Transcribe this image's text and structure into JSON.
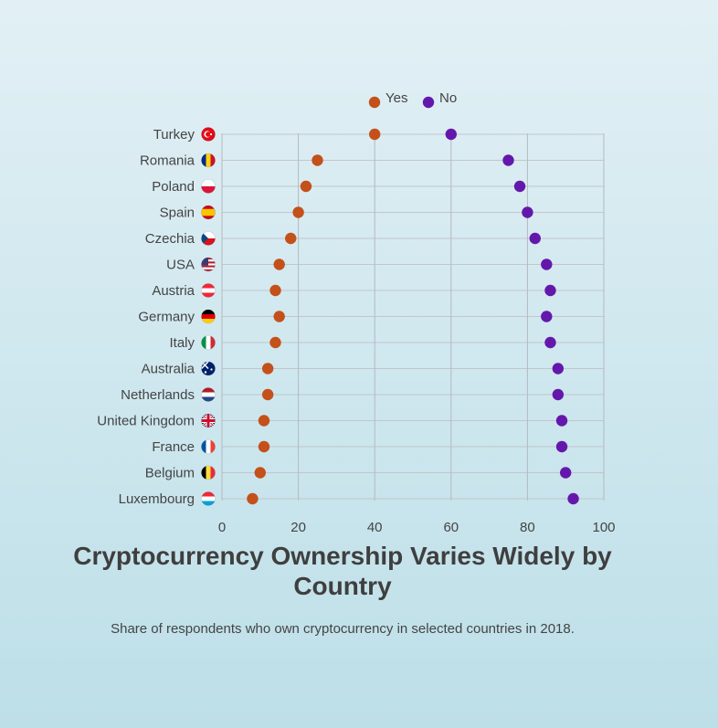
{
  "chart_data": {
    "type": "dot",
    "title": "Cryptocurrency Ownership Varies Widely by Country",
    "subtitle": "Share of respondents who own cryptocurrency in selected countries in 2018.",
    "xlim": [
      0,
      100
    ],
    "xticks": [
      "0",
      "20",
      "40",
      "60",
      "80",
      "100"
    ],
    "grid": true,
    "legend_position": "top-center",
    "categories": [
      "Turkey",
      "Romania",
      "Poland",
      "Spain",
      "Czechia",
      "USA",
      "Austria",
      "Germany",
      "Italy",
      "Australia",
      "Netherlands",
      "United Kingdom",
      "France",
      "Belgium",
      "Luxembourg"
    ],
    "flags": [
      "turkey",
      "romania",
      "poland",
      "spain",
      "czechia",
      "usa",
      "austria",
      "germany",
      "italy",
      "australia",
      "netherlands",
      "united-kingdom",
      "france",
      "belgium",
      "luxembourg"
    ],
    "series": [
      {
        "name": "Yes",
        "color": "#c4501a",
        "values": [
          40,
          25,
          22,
          20,
          18,
          15,
          14,
          15,
          14,
          12,
          12,
          11,
          11,
          10,
          8
        ]
      },
      {
        "name": "No",
        "color": "#6418ab",
        "values": [
          60,
          75,
          78,
          80,
          82,
          85,
          86,
          85,
          86,
          88,
          88,
          89,
          89,
          90,
          92
        ]
      }
    ]
  }
}
